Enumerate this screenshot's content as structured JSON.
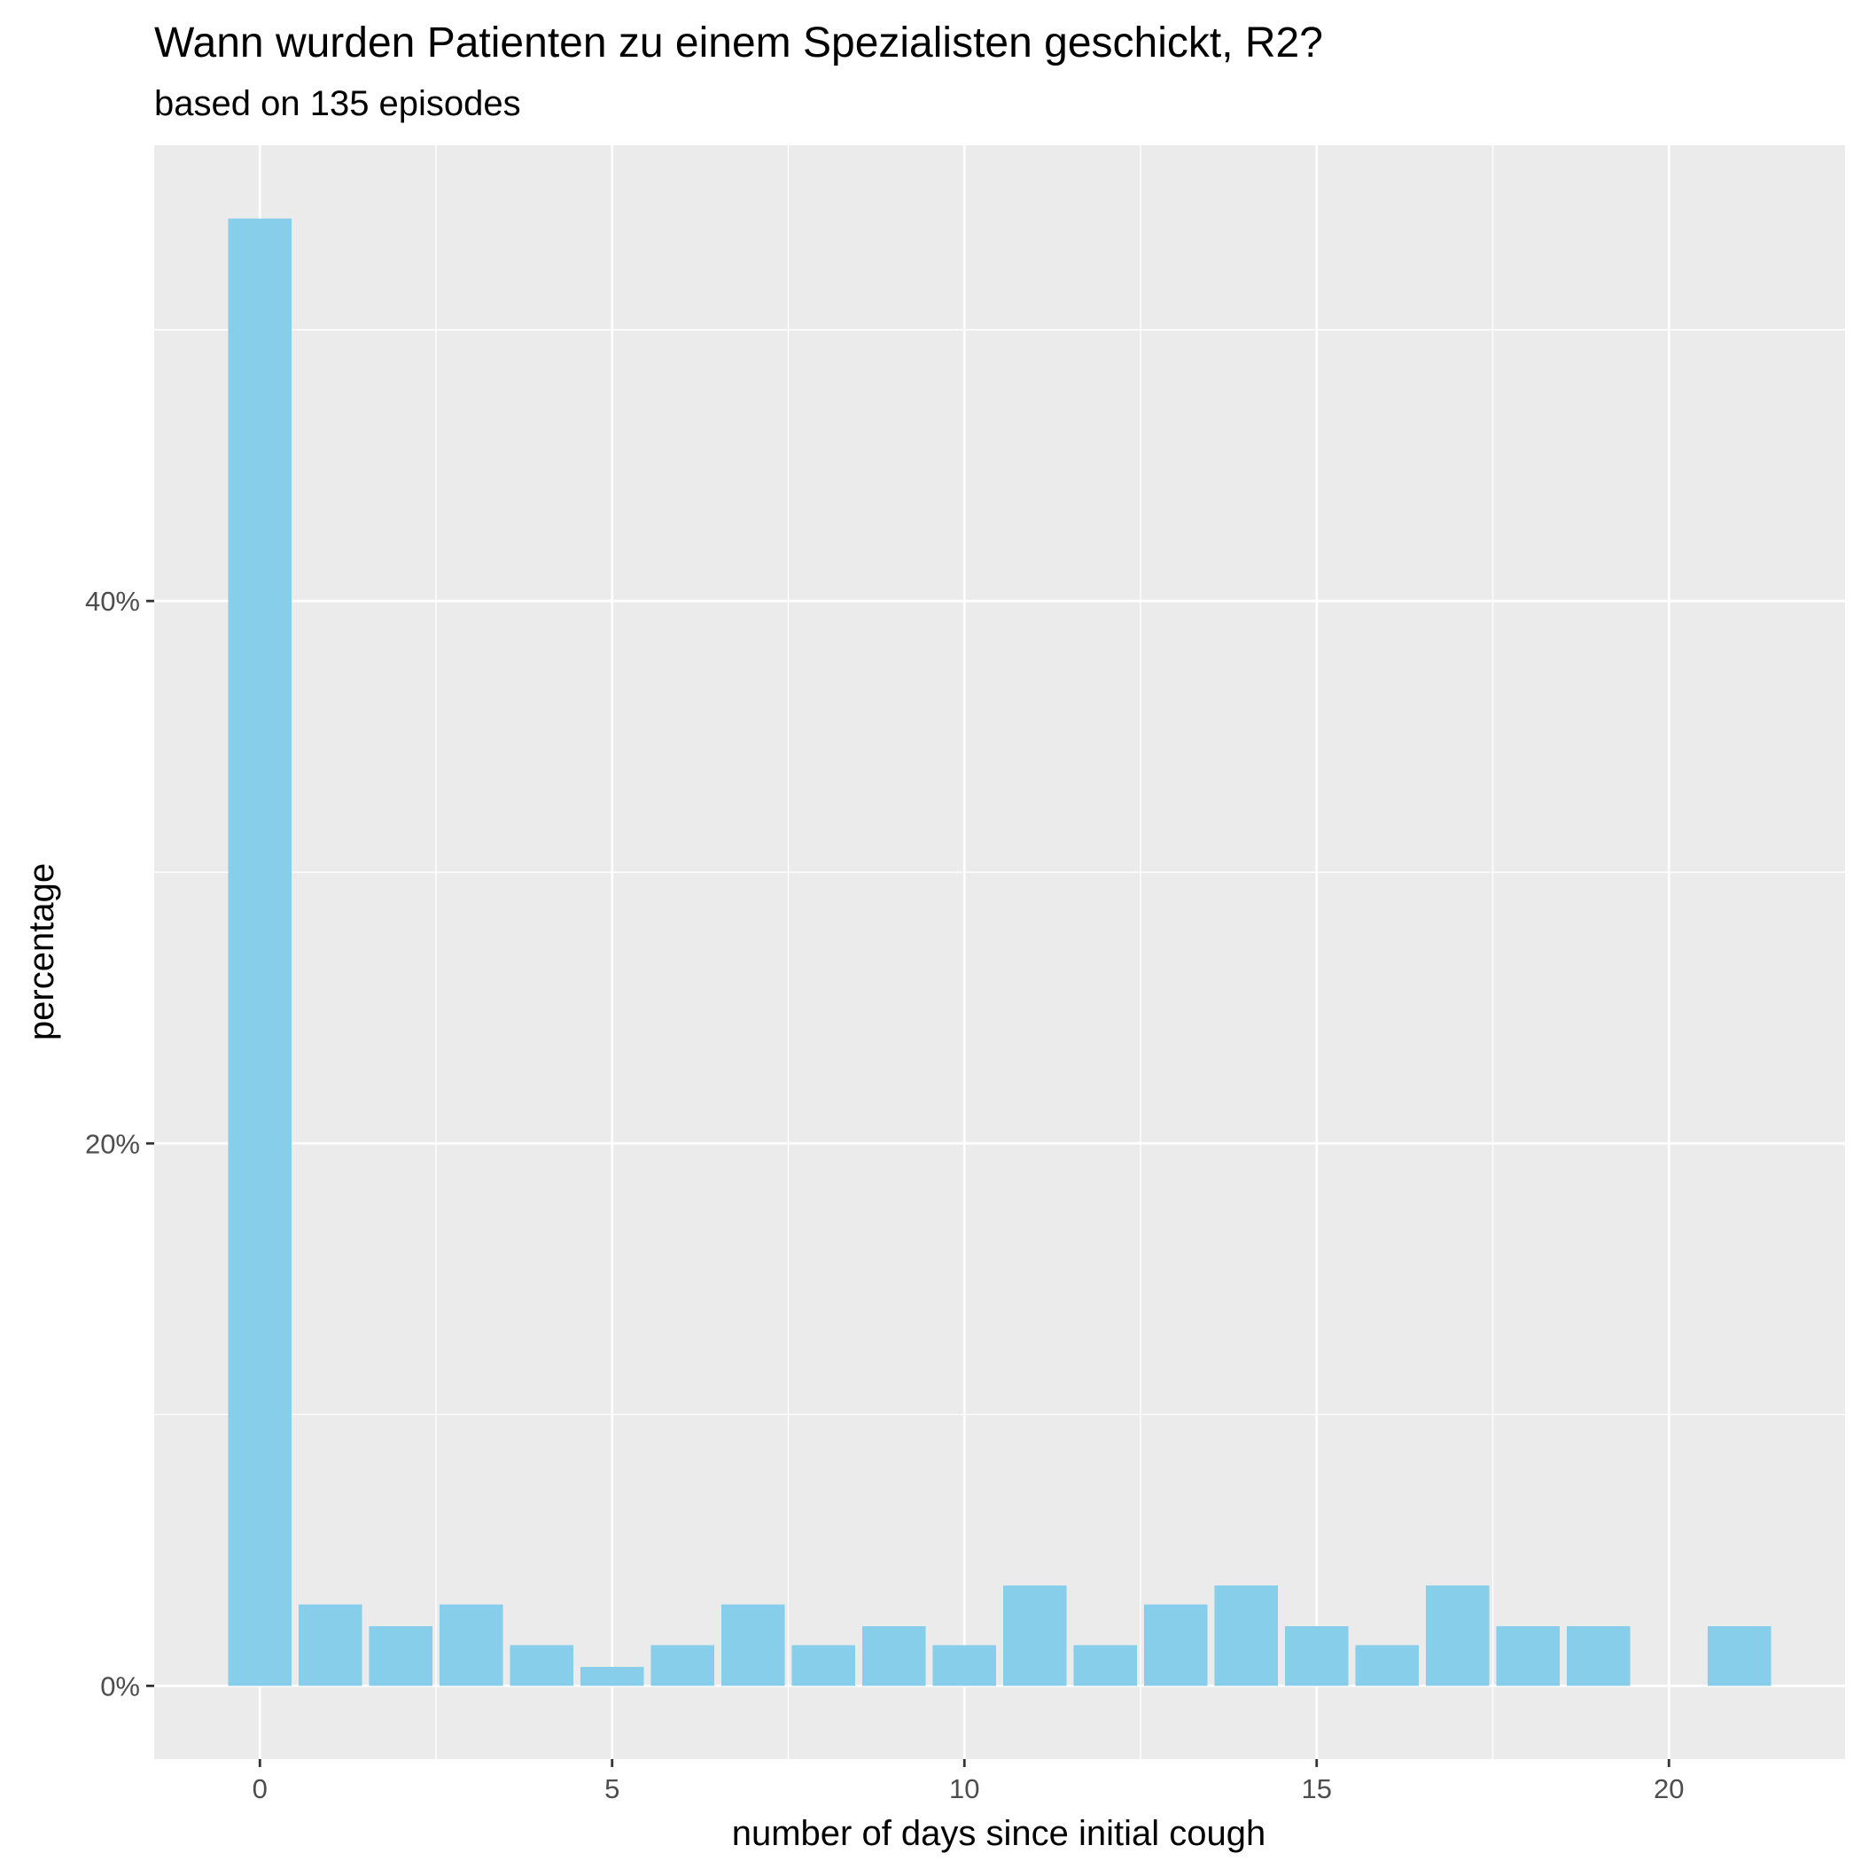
{
  "chart_data": {
    "type": "bar",
    "title": "Wann wurden Patienten zu einem Spezialisten geschickt, R2?",
    "subtitle": "based on 135 episodes",
    "xlabel": "number of days since initial cough",
    "ylabel": "percentage",
    "x": [
      0,
      1,
      2,
      3,
      4,
      5,
      6,
      7,
      8,
      9,
      10,
      11,
      12,
      13,
      14,
      15,
      16,
      17,
      18,
      19,
      20,
      21
    ],
    "values": [
      54.1,
      3.0,
      2.2,
      3.0,
      1.5,
      0.7,
      1.5,
      3.0,
      1.5,
      2.2,
      1.5,
      3.7,
      1.5,
      3.0,
      3.7,
      2.2,
      1.5,
      3.7,
      2.2,
      2.2,
      0,
      2.2
    ],
    "xlim": [
      -1.5,
      22.5
    ],
    "ylim": [
      -2.7,
      56.8
    ],
    "x_ticks": [
      0,
      5,
      10,
      15,
      20
    ],
    "x_tick_labels": [
      "0",
      "5",
      "10",
      "15",
      "20"
    ],
    "y_ticks": [
      0,
      20,
      40
    ],
    "y_tick_labels": [
      "0%",
      "20%",
      "40%"
    ],
    "grid": true,
    "legend": "none",
    "colors": {
      "bar": "#87CEEB",
      "panel": "#EBEBEB",
      "grid": "#FFFFFF",
      "tick": "#333333"
    }
  }
}
